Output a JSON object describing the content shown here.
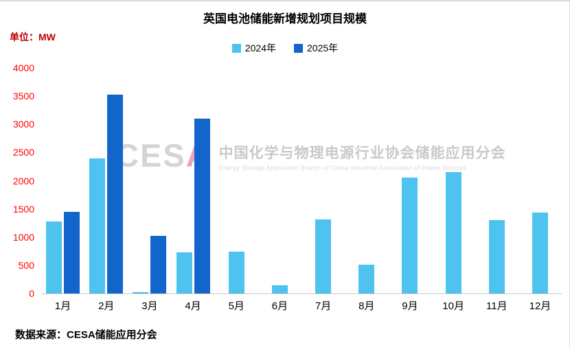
{
  "header": {
    "title": "英国电池储能新增规划项目规模",
    "unit_label": "单位：MW"
  },
  "legend": [
    {
      "label": "2024年",
      "color": "#4fc3f0"
    },
    {
      "label": "2025年",
      "color": "#1266cb"
    }
  ],
  "watermark": {
    "logo_main": "CES",
    "logo_accent": "A",
    "cn": "中国化学与物理电源行业协会储能应用分会",
    "en": "Energy Storage Application Branch of China Industrial Association of Power Sources"
  },
  "footer": {
    "source": "数据来源：CESA储能应用分会"
  },
  "colors": {
    "y_tick_text": "#ff0000",
    "series_2024": "#4fc3f0",
    "series_2025": "#1266cb"
  },
  "chart_data": {
    "type": "bar",
    "title": "英国电池储能新增规划项目规模",
    "unit": "MW",
    "categories": [
      "1月",
      "2月",
      "3月",
      "4月",
      "5月",
      "6月",
      "7月",
      "8月",
      "9月",
      "10月",
      "11月",
      "12月"
    ],
    "series": [
      {
        "name": "2024年",
        "color": "#4fc3f0",
        "values": [
          1280,
          2390,
          20,
          730,
          740,
          140,
          1310,
          510,
          2050,
          2150,
          1300,
          1430
        ]
      },
      {
        "name": "2025年",
        "color": "#1266cb",
        "values": [
          1450,
          3520,
          1020,
          3100,
          null,
          null,
          null,
          null,
          null,
          null,
          null,
          null
        ]
      }
    ],
    "ylim": [
      0,
      4000
    ],
    "ytick_step": 500,
    "grid": false,
    "legend_position": "top"
  }
}
